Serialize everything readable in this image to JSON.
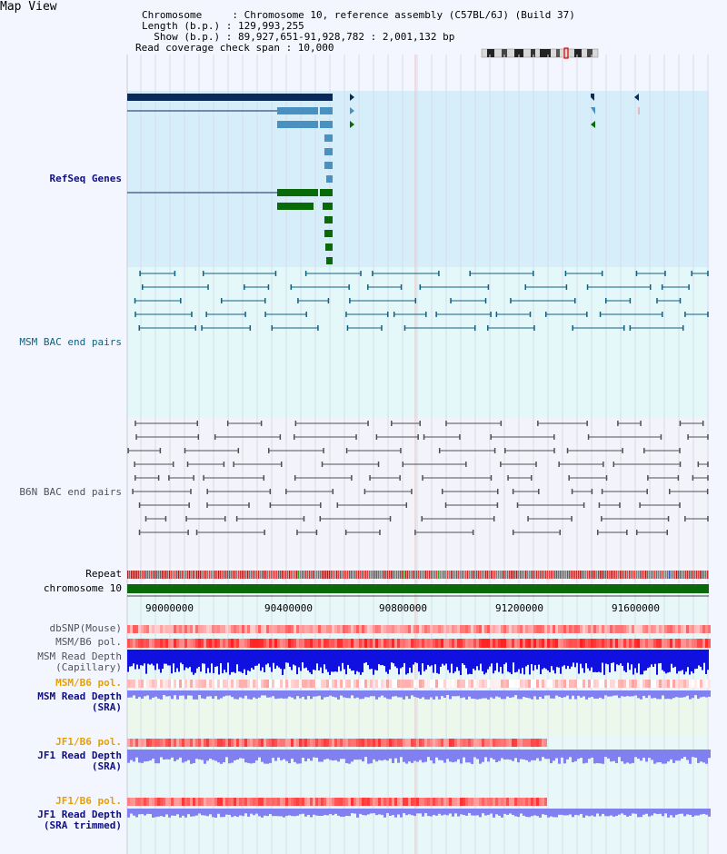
{
  "title": "Map View",
  "info": {
    "chromosome": "Chromosome     : Chromosome 10, reference assembly (C57BL/6J) (Build 37)",
    "length": "Length (b.p.) : 129,993,255",
    "show": "  Show (b.p.) : 89,927,651-91,928,782 : 2,001,132 bp",
    "coverage": "Read coverage check span : 10,000"
  },
  "tracks": {
    "refseq": "RefSeq Genes",
    "msm_bac": "MSM BAC end pairs",
    "b6n_bac": "B6N BAC end pairs",
    "repeat": "Repeat",
    "chromosome": "chromosome 10",
    "dbsnp": "dbSNP(Mouse)",
    "msm_pol1": "MSM/B6 pol.",
    "msm_rd_cap1": "MSM Read Depth",
    "msm_rd_cap2": "(Capillary)",
    "msm_pol2": "MSM/B6 pol.",
    "msm_rd_sra1": "MSM Read Depth",
    "msm_rd_sra2": "(SRA)",
    "jf1_pol1": "JF1/B6 pol.",
    "jf1_rd1": "JF1 Read Depth",
    "jf1_rd2": "(SRA)",
    "jf1_pol2": "JF1/B6 pol.",
    "jf1_rdt1": "JF1 Read Depth",
    "jf1_rdt2": "(SRA trimmed)"
  },
  "axis_ticks": [
    "90000000",
    "90400000",
    "90800000",
    "91200000",
    "91600000"
  ],
  "colors": {
    "refseq_navy": "#0a2a5a",
    "refseq_blue": "#4a90c0",
    "refseq_green": "#0a6a0a",
    "msm_bac": "#106080",
    "b6n_bac": "#505050",
    "chromosome_bar": "#0a6a0a",
    "snp_red": "#ff4040",
    "depth_blue": "#1010e0",
    "depth_light": "#8080f0"
  }
}
